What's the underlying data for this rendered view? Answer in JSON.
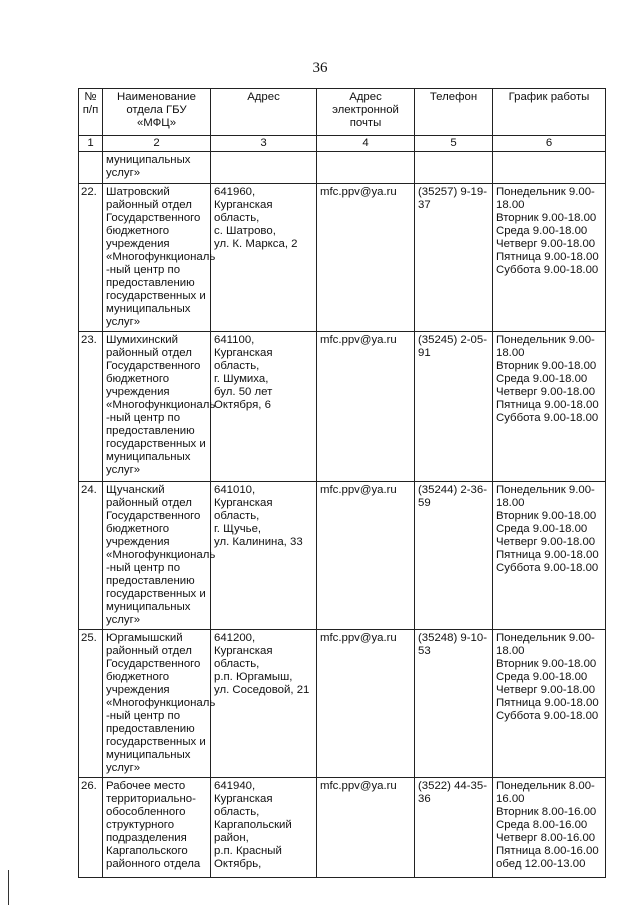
{
  "page_number": "36",
  "headers": [
    "№ п/п",
    "Наименование отдела ГБУ «МФЦ»",
    "Адрес",
    "Адрес электронной почты",
    "Телефон",
    "График работы"
  ],
  "column_numbers": [
    "1",
    "2",
    "3",
    "4",
    "5",
    "6"
  ],
  "continuation": {
    "name": "муниципальных\nуслуг»"
  },
  "rows": [
    {
      "num": "22.",
      "name": "Шатровский\nрайонный отдел\nГосударственного\nбюджетного\nучреждения\n«Многофункциональ\n-ный центр по\nпредоставлению\nгосударственных и\nмуниципальных\nуслуг»",
      "address": "641960,\nКурганская\nобласть,\nс. Шатрово,\nул. К. Маркса, 2",
      "email": "mfc.ppv@ya.ru",
      "phone": "(35257) 9-19-\n37",
      "schedule": "Понедельник 9.00-\n18.00\nВторник 9.00-18.00\nСреда 9.00-18.00\nЧетверг 9.00-18.00\nПятница 9.00-18.00\nСуббота 9.00-18.00"
    },
    {
      "num": "23.",
      "name": "Шумихинский\nрайонный отдел\nГосударственного\nбюджетного\nучреждения\n«Многофункциональ\n-ный центр по\nпредоставлению\nгосударственных и\nмуниципальных\nуслуг»",
      "address": "641100,\nКурганская\nобласть,\nг. Шумиха,\nбул. 50 лет\nОктября, 6",
      "email": "mfc.ppv@ya.ru",
      "phone": "(35245) 2-05-\n91",
      "schedule": "Понедельник 9.00-\n18.00\nВторник 9.00-18.00\nСреда 9.00-18.00\nЧетверг 9.00-18.00\nПятница 9.00-18.00\nСуббота 9.00-18.00"
    },
    {
      "num": "24.",
      "name": "Щучанский\n районный отдел\nГосударственного\nбюджетного\nучреждения\n«Многофункциональ\n-ный центр по\nпредоставлению\nгосударственных и\nмуниципальных\nуслуг»",
      "address": "641010,\nКурганская\nобласть,\nг. Щучье,\nул. Калинина, 33",
      "email": "mfc.ppv@ya.ru",
      "phone": "(35244) 2-36-\n59",
      "schedule": "Понедельник 9.00-\n18.00\nВторник 9.00-18.00\nСреда 9.00-18.00\nЧетверг 9.00-18.00\nПятница 9.00-18.00\nСуббота 9.00-18.00"
    },
    {
      "num": "25.",
      "name": "Юргамышский\n районный отдел\nГосударственного\nбюджетного\nучреждения\n«Многофункциональ\n-ный центр по\nпредоставлению\nгосударственных и\nмуниципальных\nуслуг»",
      "address": "641200,\nКурганская\nобласть,\nр.п. Юргамыш,\nул. Соседовой, 21",
      "email": "mfc.ppv@ya.ru",
      "phone": "(35248) 9-10-\n53",
      "schedule": "Понедельник 9.00-\n18.00\nВторник 9.00-18.00\nСреда 9.00-18.00\nЧетверг 9.00-18.00\nПятница 9.00-18.00\nСуббота 9.00-18.00"
    },
    {
      "num": "26.",
      "name": "Рабочее место\nтерриториально-\nобособленного\nструктурного\nподразделения\nКаргапольского\nрайонного отдела",
      "address": "641940,\nКурганская\nобласть,\nКаргапольский\nрайон,\nр.п. Красный\nОктябрь,",
      "email": "mfc.ppv@ya.ru",
      "phone": "(3522) 44-35-\n36",
      "schedule": "Понедельник 8.00-\n16.00\nВторник 8.00-16.00\nСреда 8.00-16.00\nЧетверг 8.00-16.00\nПятница 8.00-16.00\nобед 12.00-13.00"
    }
  ]
}
